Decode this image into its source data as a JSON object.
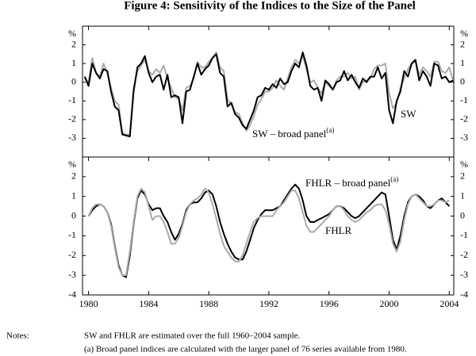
{
  "title": "Figure 4: Sensitivity of the Indices to the Size of the Panel",
  "chart_data": [
    {
      "type": "line",
      "y_unit": "%",
      "x": [
        1979.75,
        1980,
        1980.25,
        1980.5,
        1980.75,
        1981,
        1981.25,
        1981.5,
        1981.75,
        1982,
        1982.25,
        1982.5,
        1982.75,
        1983,
        1983.25,
        1983.5,
        1983.75,
        1984,
        1984.25,
        1984.5,
        1984.75,
        1985,
        1985.25,
        1985.5,
        1985.75,
        1986,
        1986.25,
        1986.5,
        1986.75,
        1987,
        1987.25,
        1987.5,
        1987.75,
        1988,
        1988.25,
        1988.5,
        1988.75,
        1989,
        1989.25,
        1989.5,
        1989.75,
        1990,
        1990.25,
        1990.5,
        1990.75,
        1991,
        1991.25,
        1991.5,
        1991.75,
        1992,
        1992.25,
        1992.5,
        1992.75,
        1993,
        1993.25,
        1993.5,
        1993.75,
        1994,
        1994.25,
        1994.5,
        1994.75,
        1995,
        1995.25,
        1995.5,
        1995.75,
        1996,
        1996.25,
        1996.5,
        1996.75,
        1997,
        1997.25,
        1997.5,
        1997.75,
        1998,
        1998.25,
        1998.5,
        1998.75,
        1999,
        1999.25,
        1999.5,
        1999.75,
        2000,
        2000.25,
        2000.5,
        2000.75,
        2001,
        2001.25,
        2001.5,
        2001.75,
        2002,
        2002.25,
        2002.5,
        2002.75,
        2003,
        2003.25,
        2003.5,
        2003.75,
        2004,
        2004.25
      ],
      "series": [
        {
          "name": "SW – broad panel",
          "color": "#aaaaaa",
          "values": [
            0.2,
            0.0,
            1.3,
            0.5,
            0.3,
            1.0,
            0.5,
            -0.3,
            -1.0,
            -1.2,
            -2.7,
            -2.8,
            -2.8,
            -0.3,
            0.6,
            0.9,
            1.2,
            0.6,
            0.4,
            0.7,
            0.5,
            0.9,
            0.2,
            -0.3,
            -0.8,
            -0.9,
            -1.5,
            -0.3,
            -0.2,
            0.2,
            1.1,
            0.8,
            0.8,
            1.1,
            1.3,
            1.6,
            0.8,
            0.6,
            -0.9,
            -1.2,
            -1.6,
            -1.7,
            -2.2,
            -2.6,
            -2.3,
            -1.8,
            -1.2,
            -0.9,
            -0.5,
            -0.5,
            -0.3,
            0.1,
            -0.2,
            -0.4,
            0.2,
            0.8,
            1.2,
            1.0,
            1.4,
            0.7,
            0.0,
            0.1,
            -0.3,
            -0.6,
            0.0,
            -0.2,
            -0.4,
            0.1,
            0.3,
            0.3,
            0.5,
            0.2,
            0.3,
            -0.4,
            0.0,
            0.1,
            0.2,
            0.7,
            0.9,
            0.9,
            1.0,
            -0.6,
            -1.4,
            -1.1,
            -0.3,
            0.2,
            0.7,
            1.0,
            1.1,
            0.4,
            0.8,
            0.6,
            0.3,
            1.1,
            1.1,
            0.6,
            0.5,
            0.8,
            0.1
          ]
        },
        {
          "name": "SW",
          "color": "#000000",
          "values": [
            0.3,
            -0.2,
            1.0,
            0.5,
            0.2,
            0.7,
            0.6,
            -0.5,
            -1.3,
            -1.5,
            -2.8,
            -2.85,
            -2.9,
            -0.5,
            0.8,
            1.0,
            1.4,
            0.5,
            0.0,
            0.3,
            0.4,
            -0.4,
            0.4,
            -0.8,
            -0.7,
            -0.8,
            -2.2,
            -0.5,
            -0.4,
            0.3,
            1.0,
            0.4,
            0.7,
            0.9,
            1.3,
            1.5,
            0.5,
            0.3,
            -1.3,
            -1.1,
            -1.7,
            -1.9,
            -2.3,
            -2.5,
            -2.0,
            -1.5,
            -0.8,
            -0.7,
            -0.3,
            -0.4,
            -0.1,
            -0.3,
            0.2,
            -0.1,
            0.0,
            0.6,
            1.0,
            0.8,
            1.6,
            0.9,
            -0.2,
            -0.4,
            -0.3,
            -1.0,
            0.1,
            -0.1,
            -0.4,
            0.0,
            0.1,
            0.6,
            0.1,
            0.4,
            0.0,
            -0.3,
            0.2,
            0.0,
            0.3,
            0.3,
            0.8,
            0.2,
            0.5,
            -1.5,
            -2.2,
            -1.0,
            -0.5,
            0.6,
            0.3,
            1.0,
            1.2,
            0.1,
            0.6,
            0.3,
            -0.2,
            1.0,
            0.9,
            0.2,
            0.3,
            0.0,
            0.1
          ]
        }
      ],
      "annotations": [
        {
          "text": "SW",
          "sup": ""
        },
        {
          "text": "SW – broad panel",
          "sup": "(a)"
        }
      ],
      "xlim": [
        1979.6,
        2004.3
      ],
      "ylim": [
        -4,
        3
      ],
      "yticks": [
        -3,
        -2,
        -1,
        0,
        1,
        2
      ]
    },
    {
      "type": "line",
      "y_unit": "%",
      "x": [
        1980,
        1980.25,
        1980.5,
        1980.75,
        1981,
        1981.25,
        1981.5,
        1981.75,
        1982,
        1982.25,
        1982.5,
        1982.75,
        1983,
        1983.25,
        1983.5,
        1983.75,
        1984,
        1984.25,
        1984.5,
        1984.75,
        1985,
        1985.25,
        1985.5,
        1985.75,
        1986,
        1986.25,
        1986.5,
        1986.75,
        1987,
        1987.25,
        1987.5,
        1987.75,
        1988,
        1988.25,
        1988.5,
        1988.75,
        1989,
        1989.25,
        1989.5,
        1989.75,
        1990,
        1990.25,
        1990.5,
        1990.75,
        1991,
        1991.25,
        1991.5,
        1991.75,
        1992,
        1992.25,
        1992.5,
        1992.75,
        1993,
        1993.25,
        1993.5,
        1993.75,
        1994,
        1994.25,
        1994.5,
        1994.75,
        1995,
        1995.25,
        1995.5,
        1995.75,
        1996,
        1996.25,
        1996.5,
        1996.75,
        1997,
        1997.25,
        1997.5,
        1997.75,
        1998,
        1998.25,
        1998.5,
        1998.75,
        1999,
        1999.25,
        1999.5,
        1999.75,
        2000,
        2000.25,
        2000.5,
        2000.75,
        2001,
        2001.25,
        2001.5,
        2001.75,
        2002,
        2002.25,
        2002.5,
        2002.75,
        2003,
        2003.25,
        2003.5,
        2003.75,
        2004
      ],
      "series": [
        {
          "name": "FHLR – broad panel",
          "color": "#000000",
          "values": [
            0.0,
            0.3,
            0.5,
            0.6,
            0.5,
            0.2,
            -0.4,
            -1.5,
            -2.5,
            -3.0,
            -3.1,
            -2.0,
            -0.4,
            0.9,
            1.3,
            1.1,
            0.6,
            0.3,
            0.4,
            0.4,
            0.0,
            -0.3,
            -0.8,
            -1.2,
            -0.9,
            -0.4,
            0.3,
            0.6,
            0.7,
            0.7,
            0.9,
            1.2,
            1.3,
            1.1,
            0.5,
            -0.3,
            -0.9,
            -1.4,
            -1.8,
            -2.1,
            -2.2,
            -2.2,
            -1.8,
            -1.2,
            -0.6,
            -0.2,
            0.1,
            0.3,
            0.3,
            0.3,
            0.4,
            0.5,
            0.8,
            1.1,
            1.4,
            1.6,
            1.4,
            0.8,
            0.0,
            -0.3,
            -0.3,
            -0.2,
            -0.1,
            0.0,
            0.1,
            0.3,
            0.5,
            0.5,
            0.4,
            0.2,
            0.0,
            -0.1,
            0.0,
            0.2,
            0.4,
            0.6,
            0.8,
            1.0,
            1.2,
            1.1,
            0.0,
            -1.2,
            -1.7,
            -1.0,
            0.0,
            0.7,
            1.0,
            1.1,
            1.0,
            0.8,
            0.5,
            0.4,
            0.6,
            0.8,
            0.9,
            0.7,
            0.5
          ]
        },
        {
          "name": "FHLR",
          "color": "#aaaaaa",
          "values": [
            0.0,
            0.4,
            0.6,
            0.6,
            0.5,
            0.2,
            -0.5,
            -1.6,
            -2.6,
            -3.0,
            -3.0,
            -1.8,
            -0.3,
            1.0,
            1.4,
            1.2,
            0.5,
            -0.2,
            0.0,
            0.0,
            -0.3,
            -0.8,
            -1.4,
            -1.4,
            -1.1,
            -0.5,
            0.2,
            0.6,
            0.8,
            0.9,
            1.1,
            1.4,
            1.2,
            0.6,
            -0.1,
            -0.9,
            -1.5,
            -1.8,
            -2.1,
            -2.3,
            -2.3,
            -2.0,
            -1.4,
            -0.8,
            -0.3,
            -0.1,
            0.0,
            0.0,
            0.0,
            0.0,
            0.3,
            0.5,
            0.7,
            1.0,
            1.3,
            1.3,
            0.9,
            0.2,
            -0.5,
            -0.8,
            -0.8,
            -0.6,
            -0.4,
            -0.2,
            0.0,
            0.3,
            0.5,
            0.5,
            0.3,
            0.0,
            -0.2,
            -0.3,
            -0.2,
            0.0,
            0.2,
            0.3,
            0.5,
            0.6,
            0.6,
            0.3,
            -0.4,
            -1.4,
            -1.8,
            -1.3,
            -0.2,
            0.6,
            1.0,
            1.1,
            0.9,
            0.7,
            0.5,
            0.5,
            0.6,
            0.8,
            0.8,
            0.7,
            0.8
          ]
        }
      ],
      "annotations": [
        {
          "text": "FHLR – broad panel",
          "sup": "(a)"
        },
        {
          "text": "FHLR",
          "sup": ""
        }
      ],
      "xlim": [
        1979.6,
        2004.3
      ],
      "ylim": [
        -4,
        3
      ],
      "yticks": [
        -4,
        -3,
        -2,
        -1,
        0,
        1,
        2
      ],
      "xticks": [
        1980,
        1984,
        1988,
        1992,
        1996,
        2000,
        2004
      ]
    }
  ],
  "notes": {
    "label": "Notes:",
    "lines": [
      "SW and FHLR are estimated over the full 1960–2004 sample.",
      "(a) Broad panel indices are calculated with the larger panel of 76 series available from 1980."
    ]
  }
}
